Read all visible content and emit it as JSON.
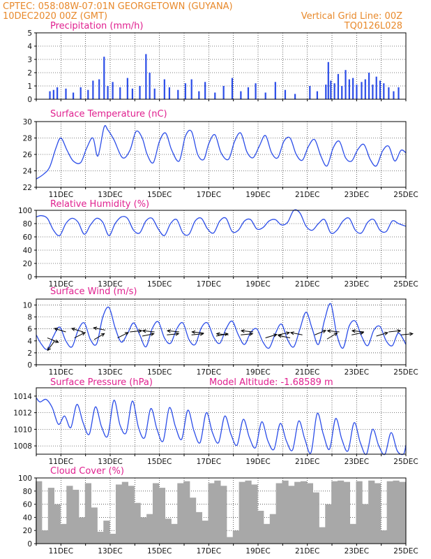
{
  "header": {
    "line1": "CPTEC:    058:08W-07:01N   GEORGETOWN (GUYANA)",
    "line2": "10DEC2020 00Z (GMT)",
    "grid_note": "Vertical Grid Line: 00Z",
    "code": "TQ0126L028"
  },
  "colors": {
    "header": "#e8892b",
    "title": "#e0208f",
    "series": "#2b4de8",
    "cloud": "#a8a8a8",
    "arrow": "#000000"
  },
  "chart_data": [
    {
      "type": "bar",
      "title": "Precipitation (mm/h)",
      "ylim": [
        0,
        5
      ],
      "yticks": [
        "0",
        "1",
        "2",
        "3",
        "4",
        "5"
      ],
      "xticks": [],
      "x": [
        10.55,
        10.7,
        10.85,
        11.2,
        11.5,
        11.8,
        12.1,
        12.3,
        12.55,
        12.75,
        12.9,
        13.1,
        13.4,
        13.7,
        13.9,
        14.2,
        14.45,
        14.6,
        14.8,
        15.2,
        15.4,
        15.75,
        16.05,
        16.3,
        16.6,
        16.85,
        17.25,
        17.6,
        17.95,
        18.3,
        18.6,
        18.9,
        19.3,
        19.7,
        20.1,
        20.5,
        21.1,
        21.4,
        21.75,
        21.85,
        21.95,
        22.1,
        22.25,
        22.4,
        22.55,
        22.7,
        22.85,
        23.0,
        23.2,
        23.35,
        23.5,
        23.65,
        23.8,
        23.95,
        24.1,
        24.3,
        24.5,
        24.7
      ],
      "values": [
        0.6,
        0.7,
        0.9,
        0.8,
        0.5,
        0.9,
        0.7,
        1.4,
        1.5,
        3.2,
        1.0,
        1.3,
        0.9,
        1.6,
        0.8,
        1.0,
        3.4,
        2.0,
        0.8,
        1.5,
        0.9,
        0.7,
        1.2,
        1.5,
        0.6,
        1.3,
        0.5,
        1.0,
        1.6,
        0.6,
        0.9,
        1.2,
        0.5,
        1.3,
        0.7,
        0.4,
        1.0,
        0.6,
        1.1,
        2.8,
        1.4,
        1.2,
        1.9,
        1.0,
        2.2,
        1.5,
        1.6,
        1.1,
        1.3,
        1.5,
        2.0,
        1.1,
        1.7,
        1.4,
        1.2,
        0.9,
        0.6,
        0.9
      ]
    },
    {
      "type": "line",
      "title": "Surface Temperature (nC)",
      "ylim": [
        22,
        30
      ],
      "yticks": [
        "22",
        "24",
        "26",
        "28",
        "30"
      ],
      "xticks": [
        "11DEC",
        "13DEC",
        "15DEC",
        "17DEC",
        "19DEC",
        "21DEC",
        "23DEC",
        "25DEC"
      ],
      "x": [
        10.0,
        10.3,
        10.55,
        10.8,
        11.0,
        11.25,
        11.5,
        11.8,
        12.05,
        12.3,
        12.5,
        12.75,
        12.9,
        13.15,
        13.5,
        13.8,
        14.05,
        14.3,
        14.5,
        14.75,
        15.0,
        15.25,
        15.5,
        15.8,
        16.05,
        16.3,
        16.55,
        16.8,
        17.0,
        17.25,
        17.5,
        17.8,
        18.05,
        18.3,
        18.55,
        18.8,
        19.05,
        19.3,
        19.55,
        19.8,
        20.05,
        20.3,
        20.55,
        20.8,
        21.05,
        21.3,
        21.55,
        21.8,
        22.05,
        22.3,
        22.55,
        22.8,
        23.05,
        23.3,
        23.55,
        23.8,
        24.05,
        24.3,
        24.55,
        24.8,
        25.0
      ],
      "values": [
        23.0,
        23.6,
        24.5,
        26.8,
        28.0,
        26.5,
        25.2,
        25.0,
        26.8,
        28.0,
        25.8,
        29.3,
        29.0,
        27.8,
        25.6,
        26.5,
        28.8,
        28.0,
        26.0,
        25.0,
        27.6,
        28.6,
        26.5,
        25.2,
        28.2,
        28.8,
        26.0,
        25.4,
        27.3,
        28.4,
        26.2,
        25.4,
        27.6,
        28.6,
        26.3,
        25.6,
        27.0,
        28.3,
        26.2,
        25.6,
        27.6,
        28.0,
        26.0,
        25.3,
        27.0,
        27.8,
        25.8,
        24.6,
        26.8,
        27.6,
        25.6,
        25.2,
        26.6,
        27.2,
        25.4,
        24.6,
        26.4,
        27.0,
        25.2,
        26.5,
        26.2
      ]
    },
    {
      "type": "line",
      "title": "Relative Humidity (%)",
      "ylim": [
        0,
        100
      ],
      "yticks": [
        "0",
        "20",
        "40",
        "60",
        "80",
        "100"
      ],
      "xticks": [
        "11DEC",
        "13DEC",
        "15DEC",
        "17DEC",
        "19DEC",
        "21DEC",
        "23DEC",
        "25DEC"
      ],
      "x": [
        10.0,
        10.2,
        10.45,
        10.7,
        10.95,
        11.2,
        11.45,
        11.7,
        11.95,
        12.2,
        12.45,
        12.7,
        12.95,
        13.2,
        13.45,
        13.7,
        13.95,
        14.2,
        14.45,
        14.7,
        14.95,
        15.2,
        15.45,
        15.7,
        15.95,
        16.2,
        16.45,
        16.7,
        16.95,
        17.2,
        17.45,
        17.7,
        17.95,
        18.2,
        18.45,
        18.7,
        18.95,
        19.2,
        19.45,
        19.7,
        19.95,
        20.2,
        20.45,
        20.7,
        20.95,
        21.2,
        21.45,
        21.7,
        21.95,
        22.2,
        22.45,
        22.7,
        22.95,
        23.2,
        23.45,
        23.7,
        23.95,
        24.2,
        24.45,
        24.7,
        25.0
      ],
      "values": [
        90,
        92,
        88,
        70,
        62,
        80,
        88,
        82,
        64,
        78,
        88,
        82,
        62,
        80,
        90,
        88,
        70,
        66,
        84,
        88,
        72,
        62,
        80,
        86,
        66,
        64,
        84,
        88,
        72,
        66,
        84,
        88,
        68,
        70,
        84,
        86,
        72,
        74,
        84,
        86,
        78,
        82,
        100,
        96,
        76,
        70,
        80,
        86,
        66,
        70,
        84,
        88,
        70,
        66,
        82,
        86,
        70,
        68,
        84,
        80,
        76
      ]
    },
    {
      "type": "line",
      "title": "Surface Wind (m/s)",
      "ylim": [
        0,
        11
      ],
      "yticks": [
        "0",
        "2",
        "4",
        "6",
        "8",
        "10"
      ],
      "xticks": [
        "11DEC",
        "13DEC",
        "15DEC",
        "17DEC",
        "19DEC",
        "21DEC",
        "23DEC",
        "25DEC"
      ],
      "x": [
        10.0,
        10.2,
        10.45,
        10.7,
        10.95,
        11.2,
        11.45,
        11.7,
        11.95,
        12.2,
        12.45,
        12.7,
        12.95,
        13.2,
        13.45,
        13.7,
        13.95,
        14.2,
        14.45,
        14.7,
        14.95,
        15.2,
        15.45,
        15.7,
        15.95,
        16.2,
        16.45,
        16.7,
        16.95,
        17.2,
        17.45,
        17.7,
        17.95,
        18.2,
        18.45,
        18.7,
        18.95,
        19.2,
        19.45,
        19.7,
        19.95,
        20.2,
        20.45,
        20.7,
        20.95,
        21.2,
        21.45,
        21.7,
        21.95,
        22.2,
        22.45,
        22.7,
        22.95,
        23.2,
        23.45,
        23.7,
        23.95,
        24.2,
        24.45,
        24.7,
        25.0
      ],
      "values": [
        5.0,
        3.5,
        2.6,
        4.8,
        6.3,
        4.0,
        3.0,
        5.8,
        7.0,
        4.2,
        3.5,
        8.0,
        9.6,
        6.2,
        3.8,
        5.2,
        7.0,
        5.0,
        3.0,
        6.0,
        7.2,
        4.5,
        3.6,
        6.0,
        7.0,
        4.2,
        3.4,
        6.2,
        7.0,
        4.6,
        3.6,
        6.0,
        7.3,
        5.0,
        3.4,
        5.4,
        6.0,
        3.8,
        2.8,
        5.2,
        6.8,
        4.2,
        3.0,
        6.0,
        8.8,
        6.0,
        3.4,
        7.5,
        10.2,
        5.0,
        2.8,
        6.5,
        7.3,
        4.8,
        3.2,
        5.8,
        6.4,
        4.0,
        3.2,
        5.3,
        3.4
      ]
    },
    {
      "type": "line",
      "title": "Surface Pressure (hPa)",
      "annotation": "Model Altitude: -1.68589 m",
      "ylim": [
        1007,
        1015
      ],
      "yticks": [
        "1008",
        "1010",
        "1012",
        "1014"
      ],
      "xticks": [
        "11DEC",
        "13DEC",
        "15DEC",
        "17DEC",
        "19DEC",
        "21DEC",
        "23DEC",
        "25DEC"
      ],
      "x": [
        10.0,
        10.15,
        10.4,
        10.65,
        10.9,
        11.15,
        11.4,
        11.65,
        11.9,
        12.15,
        12.4,
        12.65,
        12.9,
        13.15,
        13.4,
        13.65,
        13.9,
        14.15,
        14.4,
        14.65,
        14.9,
        15.15,
        15.4,
        15.65,
        15.9,
        16.15,
        16.4,
        16.65,
        16.9,
        17.15,
        17.4,
        17.65,
        17.9,
        18.15,
        18.4,
        18.65,
        18.9,
        19.15,
        19.4,
        19.65,
        19.9,
        20.15,
        20.4,
        20.65,
        20.9,
        21.15,
        21.4,
        21.65,
        21.9,
        22.15,
        22.4,
        22.65,
        22.9,
        23.15,
        23.4,
        23.65,
        23.9,
        24.15,
        24.4,
        24.65,
        24.9,
        25.0
      ],
      "values": [
        1013.8,
        1013.3,
        1013.6,
        1012.6,
        1010.6,
        1011.6,
        1010.2,
        1013.0,
        1010.8,
        1009.4,
        1012.7,
        1010.3,
        1009.2,
        1013.5,
        1010.5,
        1009.6,
        1013.4,
        1010.2,
        1009.0,
        1012.5,
        1010.0,
        1008.6,
        1012.6,
        1010.3,
        1008.8,
        1012.3,
        1009.8,
        1008.4,
        1012.0,
        1009.6,
        1008.4,
        1011.6,
        1009.4,
        1008.1,
        1011.2,
        1009.0,
        1007.8,
        1010.9,
        1008.6,
        1007.6,
        1010.7,
        1008.6,
        1007.5,
        1011.0,
        1008.8,
        1007.2,
        1011.9,
        1009.4,
        1007.6,
        1011.3,
        1008.8,
        1007.4,
        1010.8,
        1008.4,
        1007.0,
        1010.0,
        1008.0,
        1006.8,
        1009.6,
        1007.4,
        1006.8,
        1008.1
      ]
    },
    {
      "type": "bar",
      "title": "Cloud Cover (%)",
      "ylim": [
        0,
        100
      ],
      "yticks": [
        "0",
        "20",
        "40",
        "60",
        "80",
        "100"
      ],
      "xticks": [
        "11DEC",
        "13DEC",
        "15DEC",
        "17DEC",
        "19DEC",
        "21DEC",
        "23DEC",
        "25DEC"
      ],
      "x": [
        10.1,
        10.35,
        10.6,
        10.85,
        11.1,
        11.35,
        11.6,
        11.85,
        12.1,
        12.35,
        12.6,
        12.85,
        13.1,
        13.35,
        13.6,
        13.85,
        14.1,
        14.35,
        14.6,
        14.85,
        15.1,
        15.35,
        15.6,
        15.85,
        16.1,
        16.35,
        16.6,
        16.85,
        17.1,
        17.35,
        17.6,
        17.85,
        18.1,
        18.35,
        18.6,
        18.85,
        19.1,
        19.35,
        19.6,
        19.85,
        20.1,
        20.35,
        20.6,
        20.85,
        21.1,
        21.35,
        21.6,
        21.85,
        22.1,
        22.35,
        22.6,
        22.85,
        23.1,
        23.35,
        23.6,
        23.85,
        24.1,
        24.35,
        24.6,
        24.85
      ],
      "values": [
        95,
        20,
        85,
        60,
        30,
        88,
        82,
        40,
        92,
        55,
        18,
        35,
        15,
        90,
        94,
        88,
        62,
        40,
        45,
        92,
        85,
        38,
        30,
        92,
        95,
        70,
        48,
        35,
        92,
        96,
        88,
        10,
        20,
        94,
        96,
        90,
        50,
        30,
        45,
        92,
        96,
        88,
        94,
        95,
        92,
        78,
        25,
        60,
        95,
        96,
        94,
        30,
        95,
        60,
        96,
        92,
        20,
        95,
        96,
        94
      ]
    },
    {
      "type": "vector",
      "title": "wind direction arrows",
      "x": [
        10.45,
        10.75,
        11.2,
        11.55,
        11.9,
        12.35,
        12.8,
        13.3,
        13.8,
        14.3,
        14.8,
        15.3,
        15.8,
        16.3,
        16.8,
        17.3,
        17.8,
        18.3,
        18.8,
        19.3,
        19.8,
        20.3,
        20.8,
        21.3,
        21.8,
        22.3,
        22.8,
        23.3,
        23.8,
        24.3,
        24.8
      ],
      "y": [
        4.5,
        4.0,
        5.5,
        4.5,
        5.5,
        4.2,
        5.8,
        4.5,
        5.5,
        4.8,
        5.5,
        5.0,
        5.5,
        5.0,
        5.3,
        4.8,
        5.0,
        5.0,
        5.5,
        4.5,
        5.0,
        4.5,
        5.0,
        5.0,
        4.3,
        5.5,
        5.0,
        5.5,
        4.8,
        5.5,
        5.0
      ],
      "u": [
        1.0,
        -0.6,
        -1.0,
        1.0,
        -1.0,
        1.0,
        -1.0,
        1.0,
        1.0,
        1.0,
        -1.0,
        1.0,
        -1.0,
        1.0,
        -1.0,
        1.0,
        -1.0,
        1.0,
        -1.0,
        1.0,
        1.0,
        -1.0,
        -1.0,
        1.0,
        1.0,
        -1.0,
        1.0,
        -1.0,
        1.0,
        1.0,
        1.0
      ],
      "v": [
        -0.4,
        -0.8,
        0.3,
        0.5,
        0.3,
        0.6,
        0.2,
        0.5,
        0.1,
        0.2,
        0.1,
        0.1,
        0.1,
        0.1,
        0.1,
        0.2,
        0.1,
        0.1,
        0.1,
        0.3,
        0.2,
        0.2,
        0.2,
        0.4,
        0.6,
        0.1,
        0.2,
        0.1,
        0.3,
        0.1,
        0.1
      ]
    }
  ]
}
